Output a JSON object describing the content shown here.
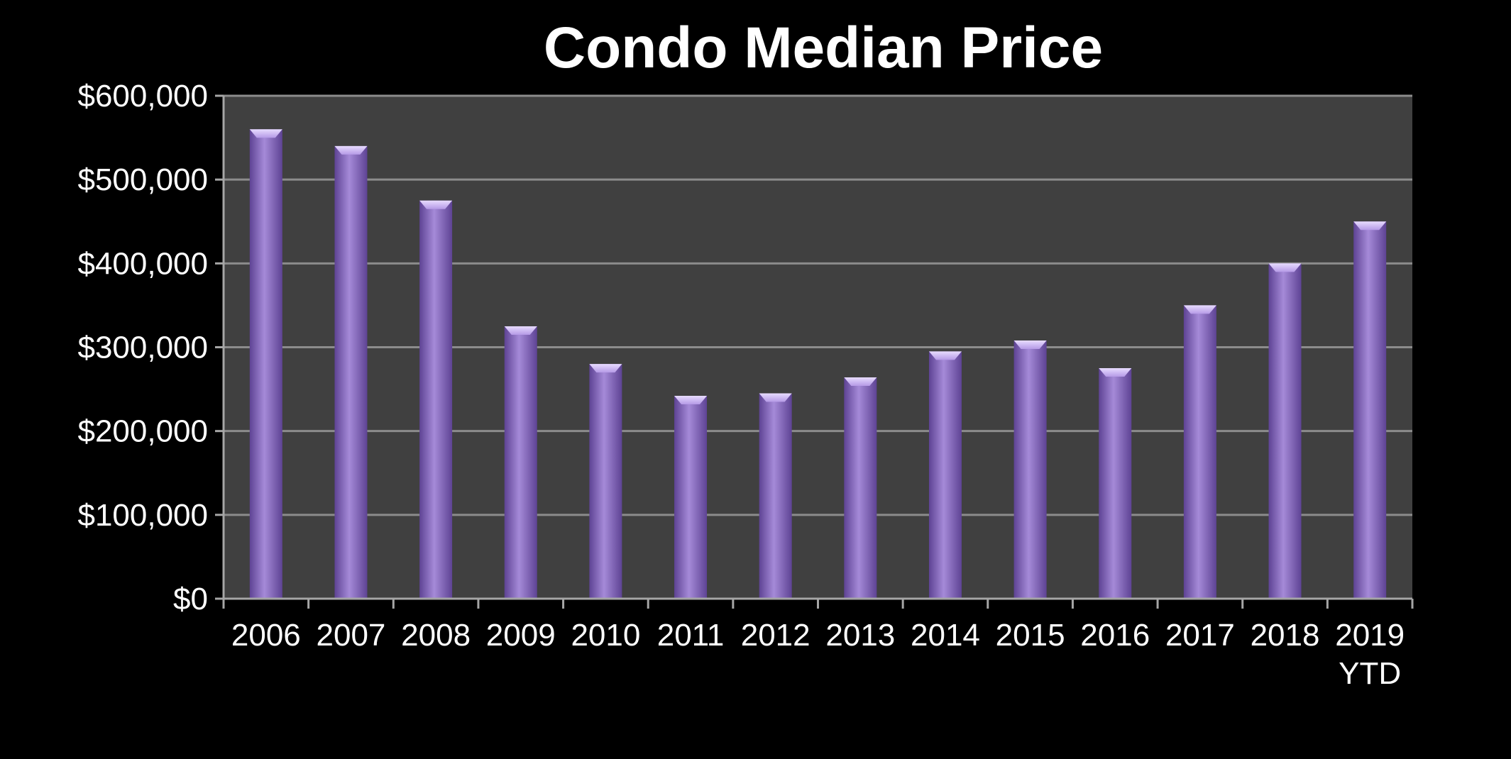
{
  "chart_data": {
    "type": "bar",
    "title": "Condo Median Price",
    "xlabel": "",
    "ylabel": "",
    "categories": [
      "2006",
      "2007",
      "2008",
      "2009",
      "2010",
      "2011",
      "2012",
      "2013",
      "2014",
      "2015",
      "2016",
      "2017",
      "2018",
      "2019 YTD"
    ],
    "category_lines": [
      [
        "2006"
      ],
      [
        "2007"
      ],
      [
        "2008"
      ],
      [
        "2009"
      ],
      [
        "2010"
      ],
      [
        "2011"
      ],
      [
        "2012"
      ],
      [
        "2013"
      ],
      [
        "2014"
      ],
      [
        "2015"
      ],
      [
        "2016"
      ],
      [
        "2017"
      ],
      [
        "2018"
      ],
      [
        "2019",
        "YTD"
      ]
    ],
    "values": [
      560000,
      540000,
      475000,
      325000,
      280000,
      242000,
      245000,
      264000,
      295000,
      308000,
      275000,
      350000,
      400000,
      450000
    ],
    "ylim": [
      0,
      600000
    ],
    "yticks": [
      0,
      100000,
      200000,
      300000,
      400000,
      500000,
      600000
    ],
    "ytick_labels": [
      "$0",
      "$100,000",
      "$200,000",
      "$300,000",
      "$400,000",
      "$500,000",
      "$600,000"
    ],
    "grid": true,
    "legend": "none",
    "colors": {
      "background": "#000000",
      "plot_area": "#404040",
      "gridline": "#8c8c8c",
      "axis": "#a6a6a6",
      "bar": "#8060b8",
      "bar_light": "#a58ad8",
      "bar_dark": "#5e4394",
      "text": "#ffffff"
    }
  }
}
